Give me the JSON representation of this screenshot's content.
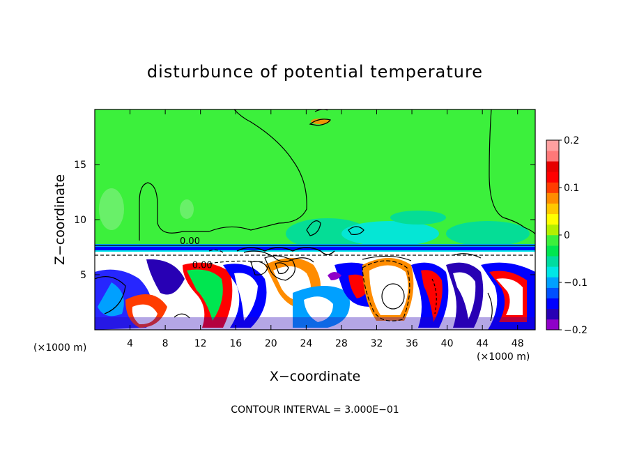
{
  "chart_data": {
    "type": "heatmap",
    "title": "disturbunce of potential temperature",
    "xlabel": "X−coordinate",
    "ylabel": "Z−coordinate",
    "xlim": [
      0,
      50
    ],
    "ylim": [
      0,
      20
    ],
    "x_ticks": [
      4,
      8,
      12,
      16,
      20,
      24,
      28,
      32,
      36,
      40,
      44,
      48
    ],
    "y_ticks": [
      5,
      10,
      15
    ],
    "x_unit_label": "(×1000 m)",
    "y_unit_label": "(×1000 m)",
    "footer": "CONTOUR INTERVAL = 3.000E−01",
    "contour_labels": [
      {
        "text": "0.00",
        "x": 10.8,
        "y": 7.8
      },
      {
        "text": "0.00",
        "x": 12.2,
        "y": 5.6
      }
    ],
    "colorbar": {
      "min": -0.2,
      "max": 0.2,
      "tick_values": [
        0.2,
        0.1,
        0,
        -0.1,
        -0.2
      ],
      "tick_labels": [
        "0.2",
        "0.1",
        "0",
        "−0.1",
        "−0.2"
      ],
      "colors": [
        "#8f00c8",
        "#2800b4",
        "#0000ff",
        "#0050ff",
        "#00a0ff",
        "#00e6e6",
        "#00dca0",
        "#00e650",
        "#3cf03c",
        "#b4f000",
        "#ffff00",
        "#ffc800",
        "#ff8c00",
        "#ff3c00",
        "#ff0000",
        "#e60000",
        "#ff7878",
        "#ffa0a0"
      ]
    },
    "field_description": {
      "upper_layer_value": 0.02,
      "interface_height": 7.3,
      "lower_layer_range": [
        -0.2,
        0.2
      ]
    }
  }
}
